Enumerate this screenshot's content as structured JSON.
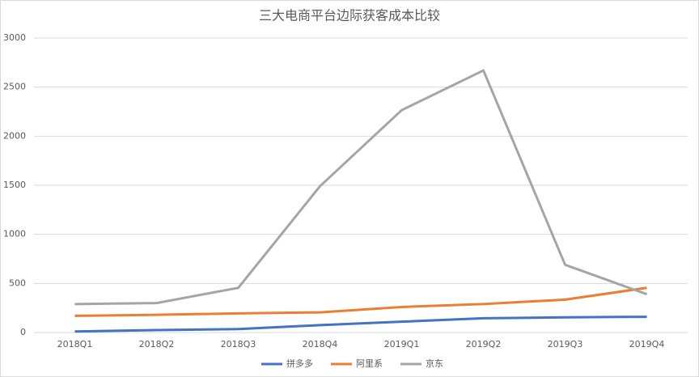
{
  "chart_data": {
    "type": "line",
    "title": "三大电商平台边际获客成本比较",
    "categories": [
      "2018Q1",
      "2018Q2",
      "2018Q3",
      "2018Q4",
      "2019Q1",
      "2019Q2",
      "2019Q3",
      "2019Q4"
    ],
    "series": [
      {
        "name": "拼多多",
        "color": "#4472c4",
        "values": [
          10,
          25,
          35,
          75,
          110,
          145,
          155,
          160
        ]
      },
      {
        "name": "阿里系",
        "color": "#ed7d31",
        "values": [
          170,
          180,
          195,
          205,
          260,
          290,
          335,
          455
        ]
      },
      {
        "name": "京东",
        "color": "#a5a5a5",
        "values": [
          290,
          300,
          455,
          1490,
          2265,
          2670,
          690,
          390
        ]
      }
    ],
    "ylim": [
      0,
      3000
    ],
    "yticks": [
      0,
      500,
      1000,
      1500,
      2000,
      2500,
      3000
    ],
    "grid": true,
    "legend": "bottom"
  }
}
